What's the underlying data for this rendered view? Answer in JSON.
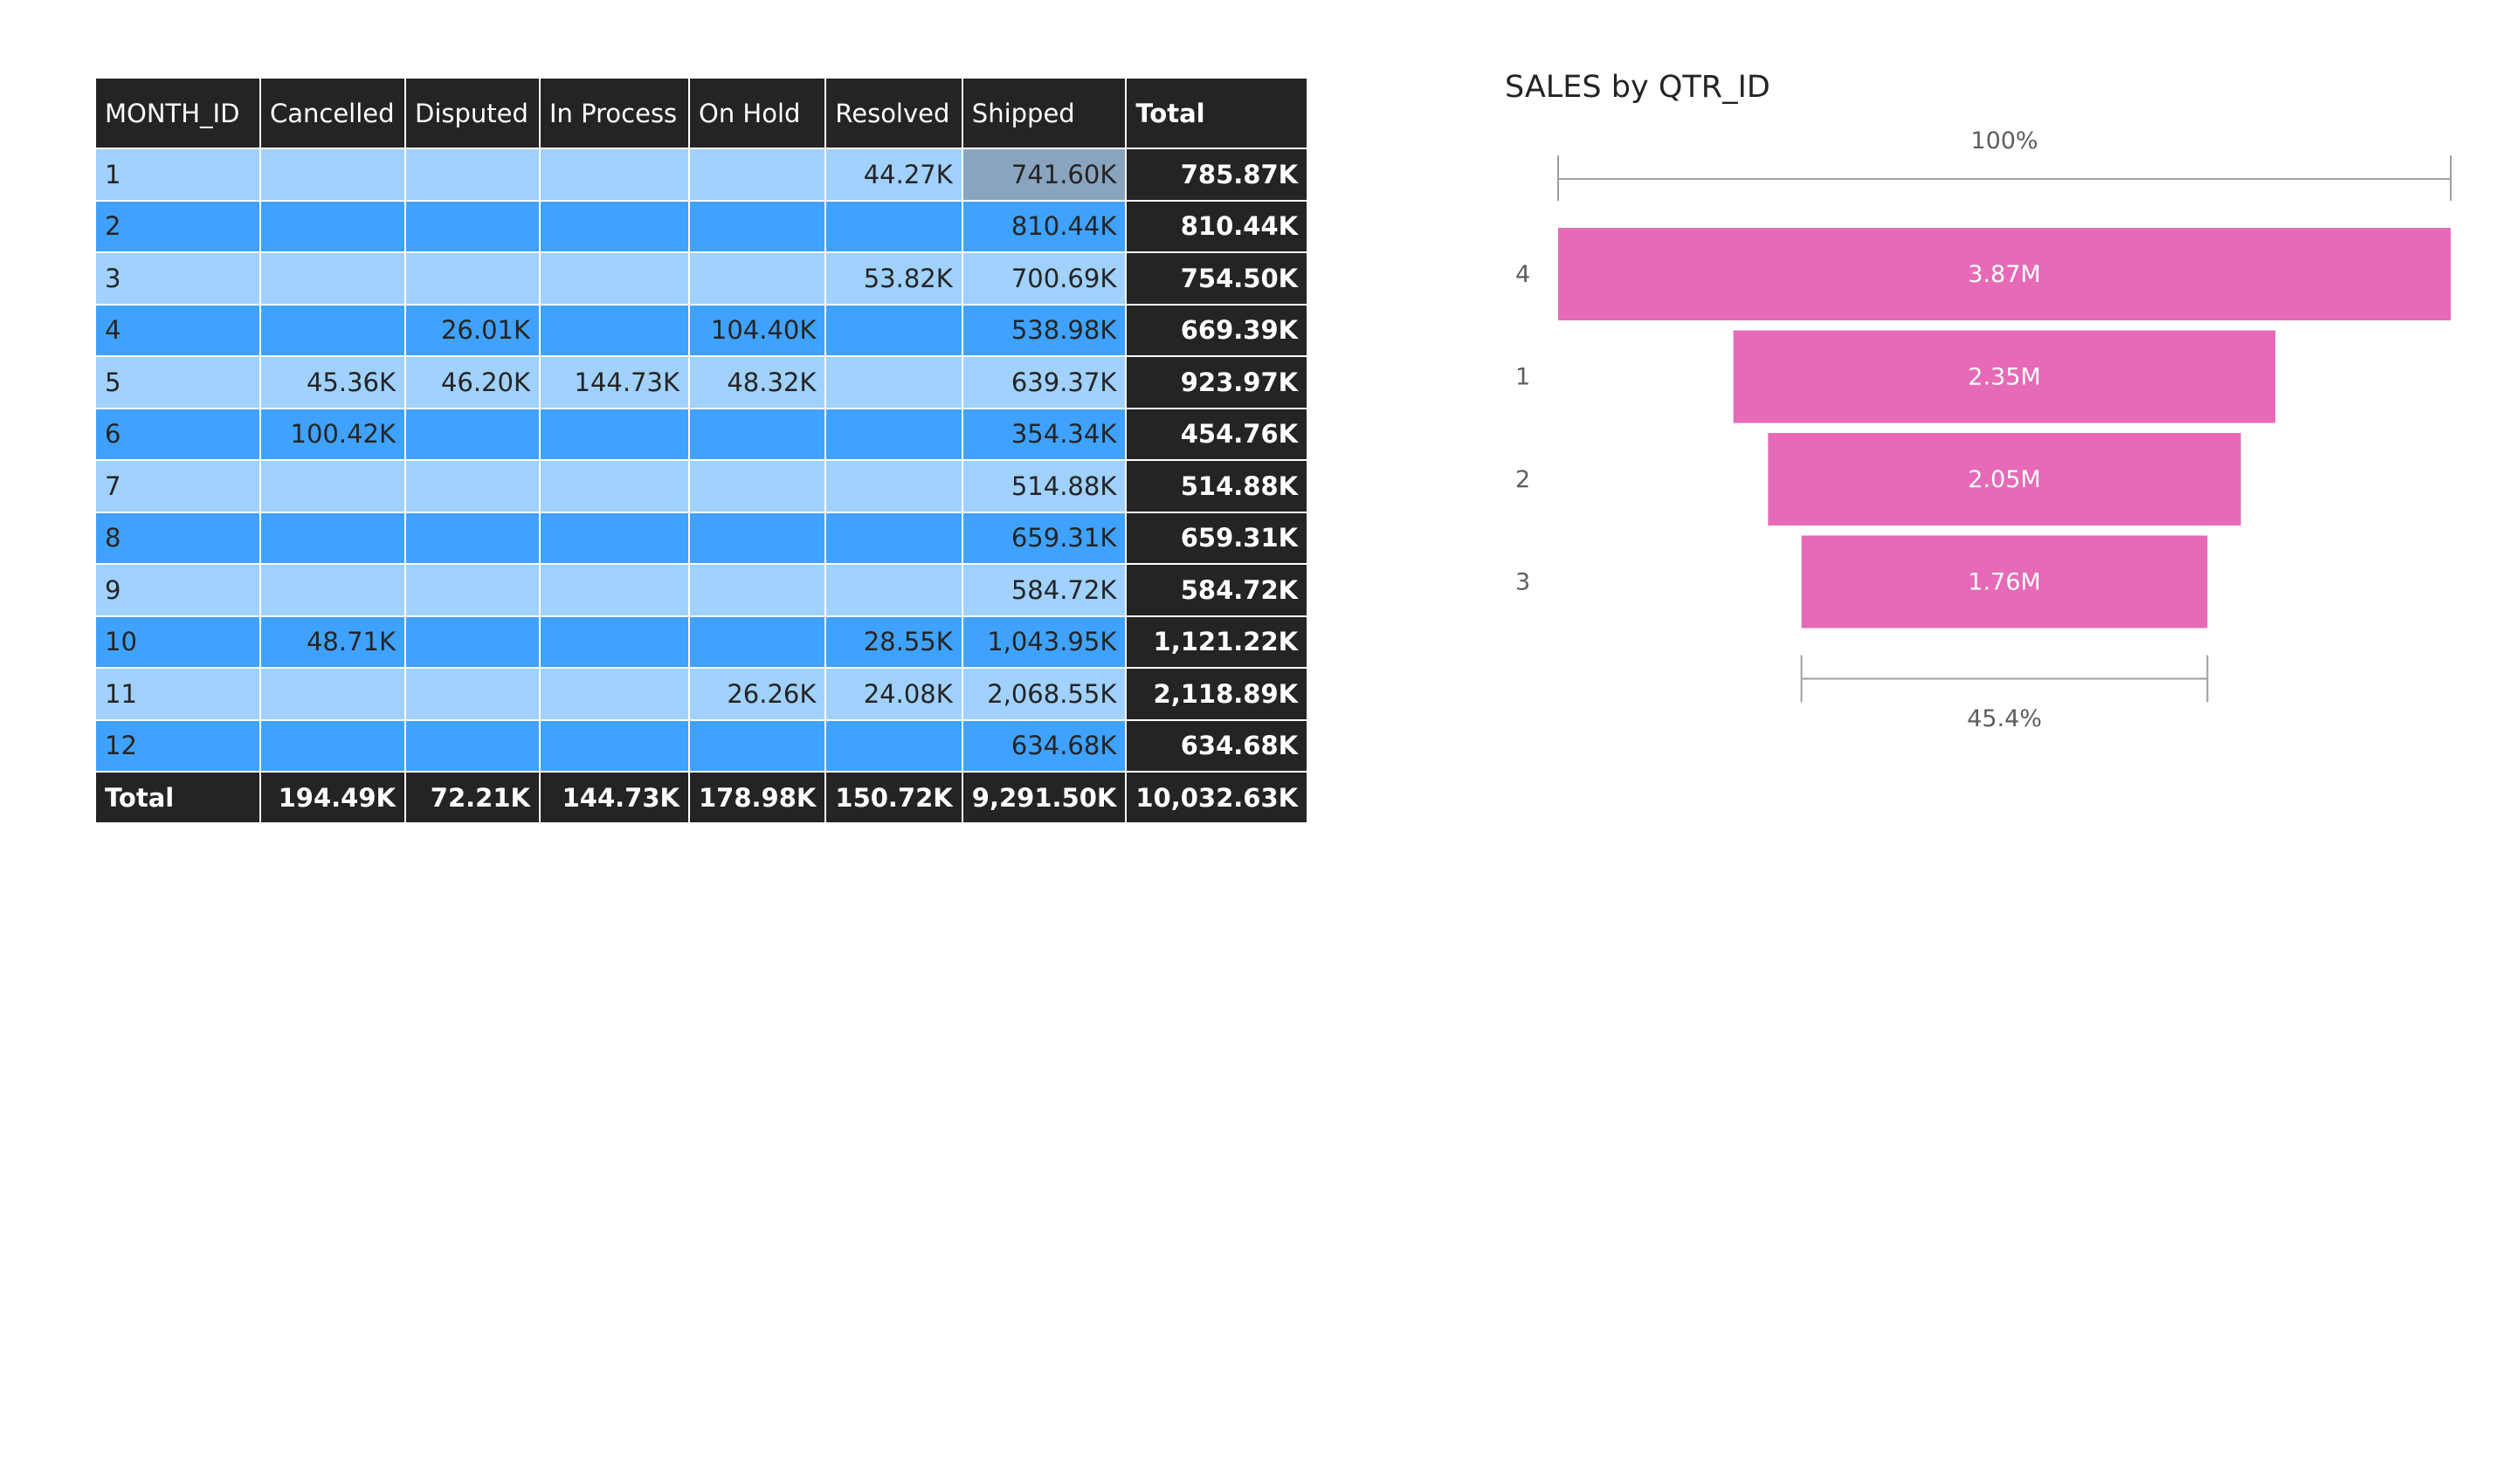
{
  "matrix": {
    "columns": [
      "MONTH_ID",
      "Cancelled",
      "Disputed",
      "In Process",
      "On Hold",
      "Resolved",
      "Shipped",
      "Total"
    ],
    "rows": [
      [
        "1",
        "",
        "",
        "",
        "",
        "44.27K",
        "741.60K",
        "785.87K"
      ],
      [
        "2",
        "",
        "",
        "",
        "",
        "",
        "810.44K",
        "810.44K"
      ],
      [
        "3",
        "",
        "",
        "",
        "",
        "53.82K",
        "700.69K",
        "754.50K"
      ],
      [
        "4",
        "",
        "26.01K",
        "",
        "104.40K",
        "",
        "538.98K",
        "669.39K"
      ],
      [
        "5",
        "45.36K",
        "46.20K",
        "144.73K",
        "48.32K",
        "",
        "639.37K",
        "923.97K"
      ],
      [
        "6",
        "100.42K",
        "",
        "",
        "",
        "",
        "354.34K",
        "454.76K"
      ],
      [
        "7",
        "",
        "",
        "",
        "",
        "",
        "514.88K",
        "514.88K"
      ],
      [
        "8",
        "",
        "",
        "",
        "",
        "",
        "659.31K",
        "659.31K"
      ],
      [
        "9",
        "",
        "",
        "",
        "",
        "",
        "584.72K",
        "584.72K"
      ],
      [
        "10",
        "48.71K",
        "",
        "",
        "",
        "28.55K",
        "1,043.95K",
        "1,121.22K"
      ],
      [
        "11",
        "",
        "",
        "",
        "26.26K",
        "24.08K",
        "2,068.55K",
        "2,118.89K"
      ],
      [
        "12",
        "",
        "",
        "",
        "",
        "",
        "634.68K",
        "634.68K"
      ]
    ],
    "totals": [
      "Total",
      "194.49K",
      "72.21K",
      "144.73K",
      "178.98K",
      "150.72K",
      "9,291.50K",
      "10,032.63K"
    ]
  },
  "funnel": {
    "title": "SALES by QTR_ID",
    "top_percent": "100%",
    "bottom_percent": "45.4%",
    "bar_color": "#e66ab8"
  },
  "chart_data": {
    "type": "funnel",
    "title": "SALES by QTR_ID",
    "categories": [
      "4",
      "1",
      "2",
      "3"
    ],
    "values": [
      3.87,
      2.35,
      2.05,
      1.76
    ],
    "value_labels": [
      "3.87M",
      "2.35M",
      "2.05M",
      "1.76M"
    ]
  },
  "colors": {
    "header_bg": "#252423",
    "row_light": "#a0d1ff",
    "row_dark": "#3fa2ff",
    "selected_cell": "#8aa4bf"
  }
}
